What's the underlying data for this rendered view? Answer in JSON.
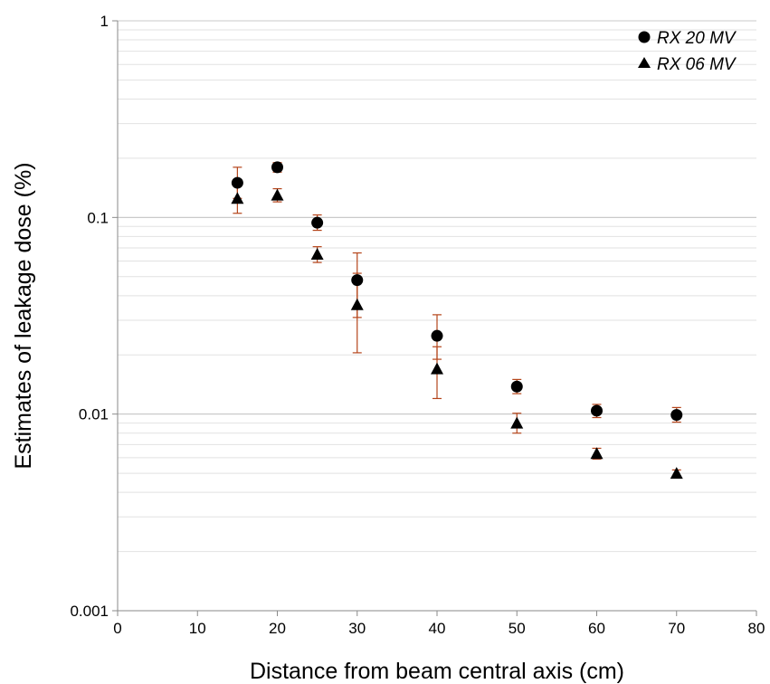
{
  "chart_data": {
    "type": "scatter",
    "xlabel": "Distance from beam central axis (cm)",
    "ylabel": "Estimates of leakage dose (%)",
    "xlim": [
      0,
      80
    ],
    "ylim": [
      0.001,
      1
    ],
    "y_scale": "log",
    "x_ticks": [
      "0",
      "10",
      "20",
      "30",
      "40",
      "50",
      "60",
      "70",
      "80"
    ],
    "y_ticks": [
      "0.001",
      "0.01",
      "0.1",
      "1"
    ],
    "grid": "horizontal minor and major",
    "legend_position": "top-right",
    "error_bar_color": "#b5451b",
    "series": [
      {
        "name": "RX 20 MV",
        "marker": "circle",
        "points": [
          {
            "x": 15,
            "y": 0.15,
            "err_low": 0.125,
            "err_high": 0.18
          },
          {
            "x": 20,
            "y": 0.18,
            "err_low": 0.17,
            "err_high": 0.19
          },
          {
            "x": 25,
            "y": 0.094,
            "err_low": 0.086,
            "err_high": 0.103
          },
          {
            "x": 30,
            "y": 0.048,
            "err_low": 0.031,
            "err_high": 0.066
          },
          {
            "x": 40,
            "y": 0.025,
            "err_low": 0.019,
            "err_high": 0.032
          },
          {
            "x": 50,
            "y": 0.0138,
            "err_low": 0.0127,
            "err_high": 0.015
          },
          {
            "x": 60,
            "y": 0.0104,
            "err_low": 0.0096,
            "err_high": 0.0112
          },
          {
            "x": 70,
            "y": 0.0099,
            "err_low": 0.0091,
            "err_high": 0.0108
          }
        ]
      },
      {
        "name": "RX 06 MV",
        "marker": "triangle",
        "points": [
          {
            "x": 15,
            "y": 0.125,
            "err_low": 0.105,
            "err_high": 0.145
          },
          {
            "x": 20,
            "y": 0.13,
            "err_low": 0.12,
            "err_high": 0.14
          },
          {
            "x": 25,
            "y": 0.065,
            "err_low": 0.059,
            "err_high": 0.071
          },
          {
            "x": 30,
            "y": 0.036,
            "err_low": 0.0205,
            "err_high": 0.052
          },
          {
            "x": 40,
            "y": 0.017,
            "err_low": 0.012,
            "err_high": 0.022
          },
          {
            "x": 50,
            "y": 0.009,
            "err_low": 0.008,
            "err_high": 0.0101
          },
          {
            "x": 60,
            "y": 0.0063,
            "err_low": 0.0059,
            "err_high": 0.0067
          },
          {
            "x": 70,
            "y": 0.005,
            "err_low": 0.0048,
            "err_high": 0.0052
          }
        ]
      }
    ]
  }
}
